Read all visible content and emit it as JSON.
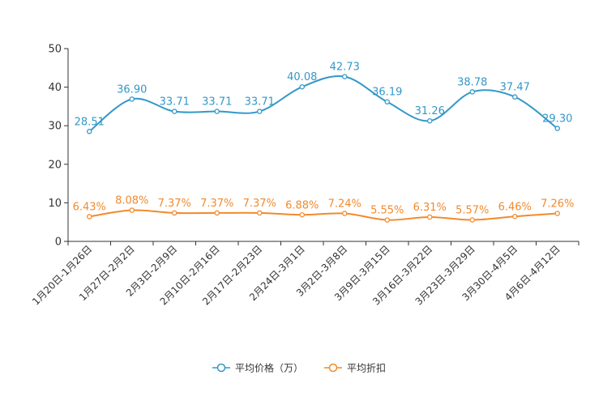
{
  "chart_data": {
    "type": "line",
    "title": "",
    "xlabel": "",
    "ylabel": "",
    "ylim": [
      0,
      50
    ],
    "yticks": [
      "0",
      "10",
      "20",
      "30",
      "40",
      "50"
    ],
    "categories": [
      "1月20日-1月26日",
      "1月27日-2月2日",
      "2月3日-2月9日",
      "2月10日-2月16日",
      "2月17日-2月23日",
      "2月24日-3月1日",
      "3月2日-3月8日",
      "3月9日-3月15日",
      "3月16日-3月22日",
      "3月23日-3月29日",
      "3月30日-4月5日",
      "4月6日-4月12日"
    ],
    "series": [
      {
        "name": "平均价格（万）",
        "color": "#3398c8",
        "values": [
          28.51,
          36.9,
          33.71,
          33.71,
          33.71,
          40.08,
          42.73,
          36.19,
          31.26,
          38.78,
          37.47,
          29.3
        ],
        "labels": [
          "28.51",
          "36.90",
          "33.71",
          "33.71",
          "33.71",
          "40.08",
          "42.73",
          "36.19",
          "31.26",
          "38.78",
          "37.47",
          "29.30"
        ]
      },
      {
        "name": "平均折扣",
        "color": "#f28a2c",
        "values": [
          6.43,
          8.08,
          7.37,
          7.37,
          7.37,
          6.88,
          7.24,
          5.55,
          6.31,
          5.57,
          6.46,
          7.26
        ],
        "labels": [
          "6.43%",
          "8.08%",
          "7.37%",
          "7.37%",
          "7.37%",
          "6.88%",
          "7.24%",
          "5.55%",
          "6.31%",
          "5.57%",
          "6.46%",
          "7.26%"
        ]
      }
    ],
    "legend": {
      "position": "bottom-center"
    }
  }
}
